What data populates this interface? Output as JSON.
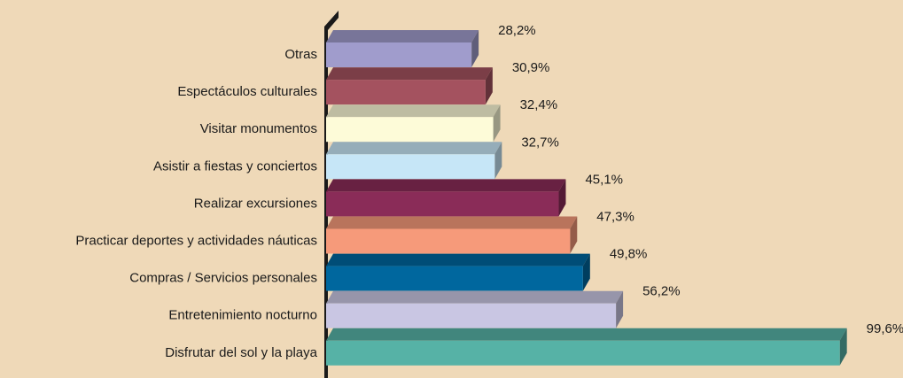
{
  "chart_data": {
    "type": "bar3d_horizontal",
    "categories": [
      "Otras",
      "Espectáculos culturales",
      "Visitar monumentos",
      "Asistir a fiestas y conciertos",
      "Realizar excursiones",
      "Practicar deportes y actividades náuticas",
      "Compras / Servicios personales",
      "Entretenimiento nocturno",
      "Disfrutar del sol y la playa"
    ],
    "values": [
      28.2,
      30.9,
      32.4,
      32.7,
      45.1,
      47.3,
      49.8,
      56.2,
      99.6
    ],
    "value_labels": [
      "28,2%",
      "30,9%",
      "32,4%",
      "32,7%",
      "45,1%",
      "47,3%",
      "49,8%",
      "56,2%",
      "99,6%"
    ],
    "colors": [
      "#a09ccc",
      "#a4525f",
      "#fdfbd8",
      "#c6e6f7",
      "#8a2c58",
      "#f69a7a",
      "#00679e",
      "#c9c6e3",
      "#56b2a6"
    ],
    "xlim": [
      0,
      100
    ]
  }
}
